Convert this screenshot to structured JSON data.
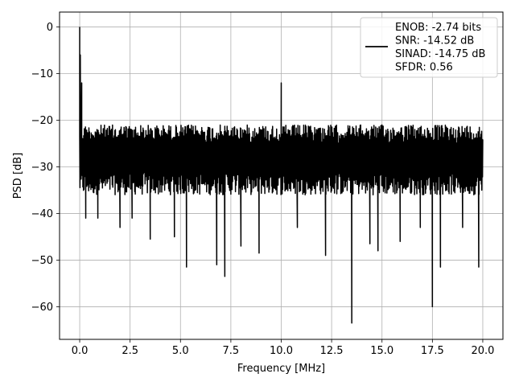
{
  "chart_data": {
    "type": "line",
    "xlabel": "Frequency [MHz]",
    "ylabel": "PSD [dB]",
    "xlim": [
      -1.0,
      21.0
    ],
    "ylim": [
      -67.0,
      3.2
    ],
    "xticks": [
      0.0,
      2.5,
      5.0,
      7.5,
      10.0,
      12.5,
      15.0,
      17.5,
      20.0
    ],
    "xtick_labels": [
      "0.0",
      "2.5",
      "5.0",
      "7.5",
      "10.0",
      "12.5",
      "15.0",
      "17.5",
      "20.0"
    ],
    "yticks": [
      0,
      -10,
      -20,
      -30,
      -40,
      -50,
      -60
    ],
    "ytick_labels": [
      "0",
      "−10",
      "−20",
      "−30",
      "−40",
      "−50",
      "−60"
    ],
    "grid": true,
    "legend_position": "top-right",
    "legend_lines": [
      "ENOB: -2.74 bits",
      "SNR: -14.52 dB",
      "SINAD: -14.75 dB",
      "SFDR: 0.56"
    ],
    "series_color": "#000000",
    "x_range": [
      0.0,
      20.0
    ],
    "band_low": -36,
    "band_high": -21,
    "spikes": [
      {
        "x": 0.0,
        "y": 0.0
      },
      {
        "x": 0.03,
        "y": -6.0
      },
      {
        "x": 0.1,
        "y": -12.0
      },
      {
        "x": 0.3,
        "y": -41.0
      },
      {
        "x": 0.9,
        "y": -41.0
      },
      {
        "x": 2.0,
        "y": -43.0
      },
      {
        "x": 2.6,
        "y": -41.0
      },
      {
        "x": 3.5,
        "y": -45.5
      },
      {
        "x": 4.7,
        "y": -45.0
      },
      {
        "x": 5.3,
        "y": -51.5
      },
      {
        "x": 6.8,
        "y": -51.0
      },
      {
        "x": 7.2,
        "y": -53.5
      },
      {
        "x": 8.0,
        "y": -47.0
      },
      {
        "x": 8.9,
        "y": -48.5
      },
      {
        "x": 10.0,
        "y": -12.0
      },
      {
        "x": 10.8,
        "y": -43.0
      },
      {
        "x": 12.2,
        "y": -49.0
      },
      {
        "x": 13.5,
        "y": -63.5
      },
      {
        "x": 14.4,
        "y": -46.5
      },
      {
        "x": 14.8,
        "y": -48.0
      },
      {
        "x": 15.9,
        "y": -46.0
      },
      {
        "x": 16.9,
        "y": -43.0
      },
      {
        "x": 17.5,
        "y": -60.0
      },
      {
        "x": 17.9,
        "y": -51.5
      },
      {
        "x": 19.0,
        "y": -43.0
      },
      {
        "x": 19.8,
        "y": -51.5
      },
      {
        "x": 19.95,
        "y": -35.0
      }
    ]
  }
}
